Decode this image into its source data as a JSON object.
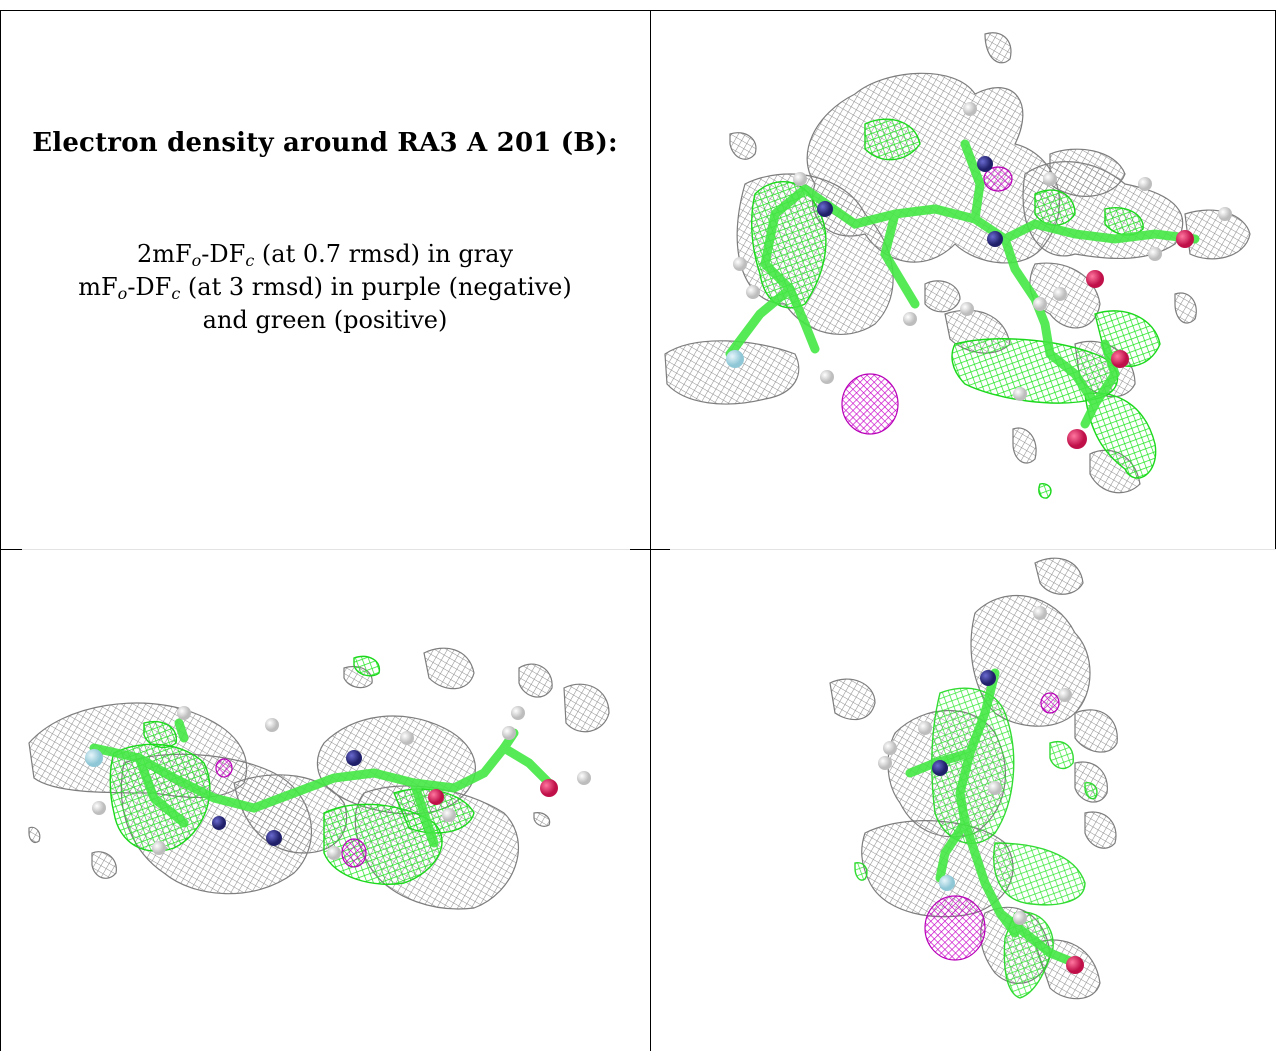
{
  "title": "Electron density around RA3 A 201 (B):",
  "legend": {
    "line1": {
      "pre": "2mF",
      "sub1": "o",
      "mid": "-DF",
      "sub2": "c",
      "post": " (at 0.7 rmsd) in gray"
    },
    "line2": {
      "pre": "mF",
      "sub1": "o",
      "mid": "-DF",
      "sub2": "c",
      "post": " (at 3 rmsd) in purple (negative)"
    },
    "line3": "and green (positive)"
  },
  "colors": {
    "density_2fofc": "#9a9a9a",
    "density_positive": "#22ee22",
    "density_negative": "#cc11cc",
    "carbon": "#55ee55",
    "nitrogen": "#333399",
    "oxygen": "#ee2266",
    "hydrogen": "#eeeeee",
    "fluorine": "#aaddee"
  },
  "panels": [
    "top-right-view",
    "bottom-left-view",
    "bottom-right-view"
  ]
}
